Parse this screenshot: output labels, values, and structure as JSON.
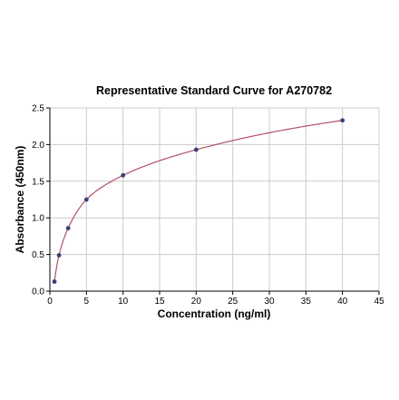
{
  "chart_data": {
    "type": "scatter",
    "title": "Representative Standard Curve for A270782",
    "xlabel": "Concentration (ng/ml)",
    "ylabel": "Absorbance (450nm)",
    "xlim": [
      0,
      45
    ],
    "ylim": [
      0,
      2.5
    ],
    "xticks": [
      0,
      5,
      10,
      15,
      20,
      25,
      30,
      35,
      40,
      45
    ],
    "yticks": [
      0.0,
      0.5,
      1.0,
      1.5,
      2.0,
      2.5
    ],
    "xtick_labels": [
      "0",
      "5",
      "10",
      "15",
      "20",
      "25",
      "30",
      "35",
      "40",
      "45"
    ],
    "ytick_labels": [
      "0.0",
      "0.5",
      "1.0",
      "1.5",
      "2.0",
      "2.5"
    ],
    "grid": true,
    "series": [
      {
        "points": [
          {
            "x": 0.625,
            "y": 0.13
          },
          {
            "x": 1.25,
            "y": 0.49
          },
          {
            "x": 2.5,
            "y": 0.86
          },
          {
            "x": 5,
            "y": 1.25
          },
          {
            "x": 10,
            "y": 1.58
          },
          {
            "x": 20,
            "y": 1.93
          },
          {
            "x": 40,
            "y": 2.33
          }
        ],
        "color": "#3b3f7a"
      }
    ],
    "fit_curve": {
      "color": "#b4506a",
      "x_range": [
        0.625,
        40
      ]
    },
    "colors": {
      "grid": "#cccccc",
      "axis": "#000000",
      "points": "#3b3f7a",
      "curve": "#b4506a"
    }
  }
}
